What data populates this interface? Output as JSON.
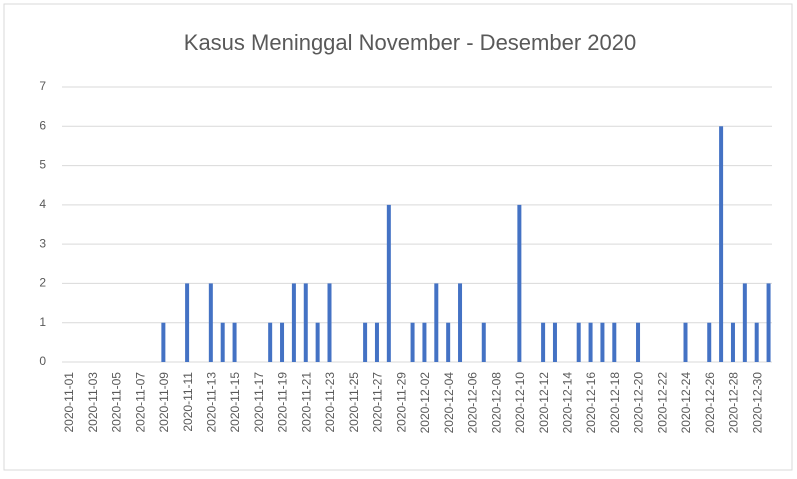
{
  "chart_data": {
    "type": "bar",
    "title": "Kasus Meninggal November - Desember 2020",
    "categories": [
      "2020-11-01",
      null,
      "2020-11-03",
      null,
      "2020-11-05",
      null,
      "2020-11-07",
      null,
      "2020-11-09",
      null,
      "2020-11-11",
      null,
      "2020-11-13",
      null,
      "2020-11-15",
      null,
      "2020-11-17",
      null,
      "2020-11-19",
      null,
      "2020-11-21",
      null,
      "2020-11-23",
      null,
      "2020-11-25",
      null,
      "2020-11-27",
      null,
      "2020-11-29",
      null,
      "2020-12-02",
      null,
      "2020-12-04",
      null,
      "2020-12-06",
      null,
      "2020-12-08",
      null,
      "2020-12-10",
      null,
      "2020-12-12",
      null,
      "2020-12-14",
      null,
      "2020-12-16",
      null,
      "2020-12-18",
      null,
      "2020-12-20",
      null,
      "2020-12-22",
      null,
      "2020-12-24",
      null,
      "2020-12-26",
      null,
      "2020-12-28",
      null,
      "2020-12-30",
      null
    ],
    "values": [
      0,
      0,
      0,
      0,
      0,
      0,
      0,
      0,
      1,
      0,
      2,
      0,
      2,
      1,
      1,
      0,
      0,
      1,
      1,
      2,
      2,
      1,
      2,
      0,
      0,
      1,
      1,
      4,
      0,
      1,
      1,
      2,
      1,
      2,
      0,
      1,
      0,
      0,
      4,
      0,
      1,
      1,
      0,
      1,
      1,
      1,
      1,
      0,
      1,
      0,
      0,
      0,
      1,
      0,
      1,
      6,
      1,
      2,
      1,
      2
    ],
    "color": "#4472c4",
    "ylim": [
      0,
      7
    ],
    "yticks": [
      0,
      1,
      2,
      3,
      4,
      5,
      6,
      7
    ],
    "grid": true
  }
}
